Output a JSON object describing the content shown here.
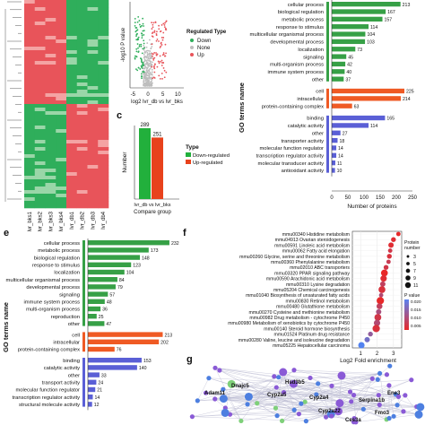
{
  "panel_letters": [
    "c",
    "e",
    "f",
    "g"
  ],
  "chart_data": [
    {
      "id": "heatmap",
      "type": "heatmap",
      "columns": [
        "lvr_bks1",
        "lvr_bks2",
        "lvr_bks3",
        "lvr_bks4",
        "lvr_db1",
        "lvr_db2",
        "lvr_db3",
        "lvr_db4"
      ],
      "colors": {
        "high": "#e8545a",
        "low": "#2fae5b",
        "mid": "#f2f2f2"
      }
    },
    {
      "id": "volcano",
      "type": "scatter",
      "xlabel": "log2 lvr_db vs lvr_bks",
      "ylabel": "-log10 P value",
      "x_ticks": [
        -5,
        0,
        5,
        10
      ],
      "xlim": [
        -6,
        12
      ],
      "legend_title": "Regulated Type",
      "legend": [
        {
          "name": "Down",
          "color": "#2fae5b"
        },
        {
          "name": "None",
          "color": "#bdbdbd"
        },
        {
          "name": "Up",
          "color": "#e8545a"
        }
      ]
    },
    {
      "id": "go_top",
      "type": "bar",
      "orientation": "horizontal",
      "ylabel": "GO terms name",
      "xlabel": "Number of proteins",
      "xlim": [
        0,
        250
      ],
      "x_ticks": [
        0,
        50,
        100,
        150,
        200,
        250
      ],
      "groups": [
        {
          "color": "#36a046",
          "items": [
            {
              "label": "cellular process",
              "value": 213
            },
            {
              "label": "biological regulation",
              "value": 167
            },
            {
              "label": "metabolic process",
              "value": 157
            },
            {
              "label": "response to stimulus",
              "value": 114
            },
            {
              "label": "multicellular organismal process",
              "value": 104
            },
            {
              "label": "developmental process",
              "value": 103
            },
            {
              "label": "localization",
              "value": 73
            },
            {
              "label": "signaling",
              "value": 45
            },
            {
              "label": "multi-organism process",
              "value": 42
            },
            {
              "label": "immune system process",
              "value": 40
            },
            {
              "label": "other",
              "value": 37
            }
          ]
        },
        {
          "color": "#ef5a24",
          "items": [
            {
              "label": "cell",
              "value": 225
            },
            {
              "label": "intracellular",
              "value": 214
            },
            {
              "label": "protein-containing complex",
              "value": 63
            }
          ]
        },
        {
          "color": "#5a5fd6",
          "items": [
            {
              "label": "binding",
              "value": 165
            },
            {
              "label": "catalytic activity",
              "value": 114
            },
            {
              "label": "other",
              "value": 27
            },
            {
              "label": "transporter activity",
              "value": 18
            },
            {
              "label": "molecular function regulator",
              "value": 14
            },
            {
              "label": "transcription regulator activity",
              "value": 14
            },
            {
              "label": "molecular transducer activity",
              "value": 11
            },
            {
              "label": "antioxidant activity",
              "value": 10
            }
          ]
        }
      ]
    },
    {
      "id": "updown",
      "type": "bar",
      "panel": "c",
      "ylabel": "Number",
      "categories": [
        "lvr_db vs lvr_bks"
      ],
      "xlabel": "Compare group",
      "ylim": [
        0,
        300
      ],
      "series": [
        {
          "name": "Down-regulated",
          "values": [
            289
          ],
          "color": "#22b03c"
        },
        {
          "name": "Up-regulated",
          "values": [
            251
          ],
          "color": "#e8421c"
        }
      ],
      "legend_title": "Type"
    },
    {
      "id": "go_bottom",
      "type": "bar",
      "panel": "e",
      "orientation": "horizontal",
      "ylabel": "GO terms name",
      "xlim": [
        0,
        250
      ],
      "groups": [
        {
          "color": "#36a046",
          "items": [
            {
              "label": "cellular process",
              "value": 232
            },
            {
              "label": "metabolic process",
              "value": 173
            },
            {
              "label": "biological regulation",
              "value": 148
            },
            {
              "label": "response to stimulus",
              "value": 123
            },
            {
              "label": "localization",
              "value": 104
            },
            {
              "label": "multicellular organismal process",
              "value": 84
            },
            {
              "label": "developmental process",
              "value": 79
            },
            {
              "label": "signaling",
              "value": 57
            },
            {
              "label": "immune system process",
              "value": 48
            },
            {
              "label": "multi-organism process",
              "value": 36
            },
            {
              "label": "reproduction",
              "value": 25
            },
            {
              "label": "other",
              "value": 47
            }
          ]
        },
        {
          "color": "#ef5a24",
          "items": [
            {
              "label": "cell",
              "value": 213
            },
            {
              "label": "intracellular",
              "value": 202
            },
            {
              "label": "protein-containing complex",
              "value": 76
            }
          ]
        },
        {
          "color": "#5a5fd6",
          "items": [
            {
              "label": "binding",
              "value": 153
            },
            {
              "label": "catalytic activity",
              "value": 140
            },
            {
              "label": "other",
              "value": 33
            },
            {
              "label": "transport activity",
              "value": 24
            },
            {
              "label": "molecular function regulator",
              "value": 21
            },
            {
              "label": "transcription regulator activity",
              "value": 14
            },
            {
              "label": "structural molecule activity",
              "value": 12
            }
          ]
        }
      ]
    },
    {
      "id": "kegg",
      "type": "scatter",
      "panel": "f",
      "xlabel": "Log2 Fold enrichment",
      "xlim": [
        0.5,
        3.5
      ],
      "x_ticks": [
        1,
        2,
        3
      ],
      "size_legend_title": "Protein number",
      "size_levels": [
        3,
        5,
        7,
        9,
        11
      ],
      "color_legend_title": "P value",
      "color_ticks": [
        "0.020",
        "0.015",
        "0.010",
        "0.005"
      ],
      "terms": [
        {
          "label": "mmu00340 Histidine metabolism",
          "x": 3.3,
          "n": 4,
          "p": 0.001
        },
        {
          "label": "mmu04913 Ovarian steroidogenesis",
          "x": 3.0,
          "n": 5,
          "p": 0.002
        },
        {
          "label": "mmu00591 Linoleic acid metabolism",
          "x": 2.85,
          "n": 6,
          "p": 0.002
        },
        {
          "label": "mmu00062 Fatty acid elongation",
          "x": 2.8,
          "n": 4,
          "p": 0.004
        },
        {
          "label": "mmu00260 Glycine, serine and threonine metabolism",
          "x": 2.75,
          "n": 5,
          "p": 0.003
        },
        {
          "label": "mmu00360 Phenylalanine metabolism",
          "x": 2.7,
          "n": 4,
          "p": 0.005
        },
        {
          "label": "mmu02010 ABC transporters",
          "x": 2.55,
          "n": 5,
          "p": 0.004
        },
        {
          "label": "mmu03320 PPAR signaling pathway",
          "x": 2.45,
          "n": 9,
          "p": 0.001
        },
        {
          "label": "mmu00590 Arachidonic acid metabolism",
          "x": 2.4,
          "n": 8,
          "p": 0.002
        },
        {
          "label": "mmu00310 Lysine degradation",
          "x": 2.35,
          "n": 6,
          "p": 0.006
        },
        {
          "label": "mmu05204 Chemical carcinogenesis",
          "x": 2.3,
          "n": 9,
          "p": 0.003
        },
        {
          "label": "mmu01040 Biosynthesis of unsaturated fatty acids",
          "x": 2.25,
          "n": 4,
          "p": 0.008
        },
        {
          "label": "mmu00830 Retinol metabolism",
          "x": 2.2,
          "n": 10,
          "p": 0.001
        },
        {
          "label": "mmu00480 Glutathione metabolism",
          "x": 2.15,
          "n": 7,
          "p": 0.006
        },
        {
          "label": "mmu00270 Cysteine and methionine metabolism",
          "x": 2.1,
          "n": 6,
          "p": 0.009
        },
        {
          "label": "mmu00982 Drug metabolism - cytochrome P450",
          "x": 2.05,
          "n": 9,
          "p": 0.004
        },
        {
          "label": "mmu00980 Metabolism of xenobiotics by cytochrome P450",
          "x": 2.0,
          "n": 8,
          "p": 0.008
        },
        {
          "label": "mmu00140 Steroid hormone biosynthesis",
          "x": 1.95,
          "n": 10,
          "p": 0.003
        },
        {
          "label": "mmu01524 Platinum drug resistance",
          "x": 1.6,
          "n": 5,
          "p": 0.012
        },
        {
          "label": "mmu00280 Valine, leucine and isoleucine degradation",
          "x": 1.4,
          "n": 6,
          "p": 0.016
        },
        {
          "label": "mmu05225 Hepatocellular carcinoma",
          "x": 1.05,
          "n": 8,
          "p": 0.02
        }
      ]
    },
    {
      "id": "network",
      "type": "diagram",
      "panel": "g",
      "nodes": [
        "Hsd3b5",
        "Cyp2a5",
        "Cyp2a22",
        "Adam11",
        "Dnajc5",
        "Serpina1b",
        "Cyp2a4",
        "Fmo3",
        "Ces3a",
        "Ene3"
      ],
      "node_color": "#8a5ad6",
      "edge_color": "#b8b8d0"
    }
  ]
}
